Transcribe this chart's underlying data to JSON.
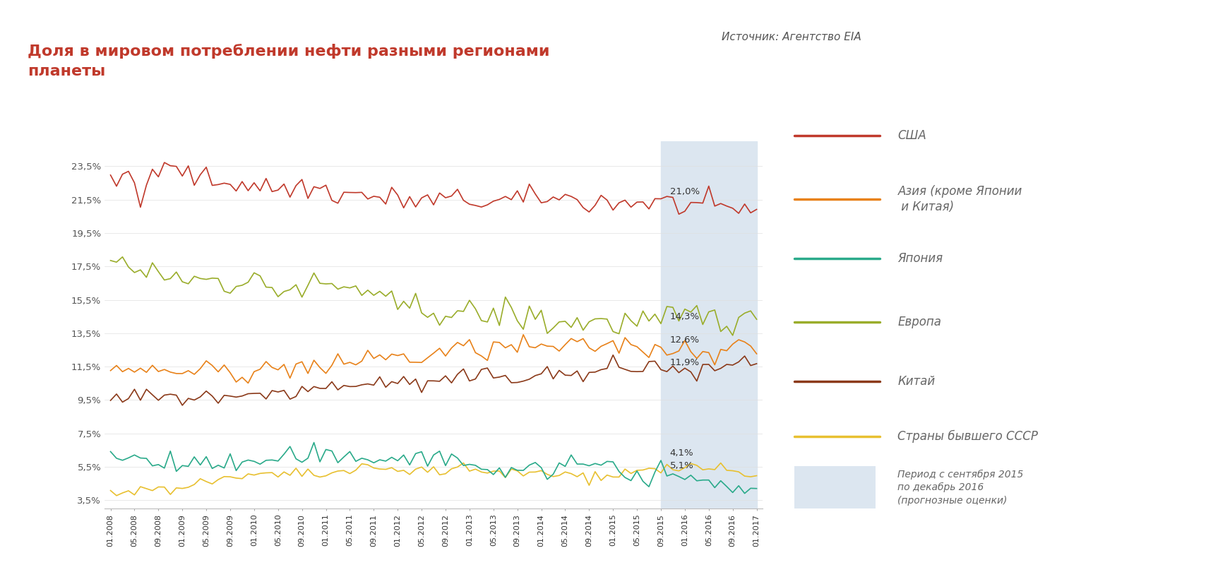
{
  "title": "Доля в мировом потреблении нефти разными регионами\nпланеты",
  "source": "Источник: Агентство EIA",
  "title_color": "#c0392b",
  "title_bg": "#dce6f0",
  "background_color": "#ffffff",
  "highlight_color": "#dce6f0",
  "highlight_label": "Период с сентября 2015\nпо декабрь 2016\n(прогнозные оценки)",
  "yticks": [
    3.5,
    5.5,
    7.5,
    9.5,
    11.5,
    13.5,
    15.5,
    17.5,
    19.5,
    21.5,
    23.5
  ],
  "ylim": [
    3.0,
    25.0
  ],
  "legend_entries": [
    {
      "name": "США",
      "color": "#c0392b"
    },
    {
      "name": "Азия (кроме Японии\n и Китая)",
      "color": "#e8821a"
    },
    {
      "name": "Япония",
      "color": "#2aaa8a"
    },
    {
      "name": "Европа",
      "color": "#9aad2b"
    },
    {
      "name": "Китай",
      "color": "#8b3a1a"
    },
    {
      "name": "Страны бывшего СССР",
      "color": "#e8c030"
    }
  ],
  "end_labels": [
    {
      "label": "21,0%",
      "series_idx": 0
    },
    {
      "label": "14,3%",
      "series_idx": 1
    },
    {
      "label": "12,6%",
      "series_idx": 2
    },
    {
      "label": "11,9%",
      "series_idx": 3
    },
    {
      "label": "5,1%",
      "series_idx": 4
    },
    {
      "label": "4,1%",
      "series_idx": 5
    }
  ]
}
